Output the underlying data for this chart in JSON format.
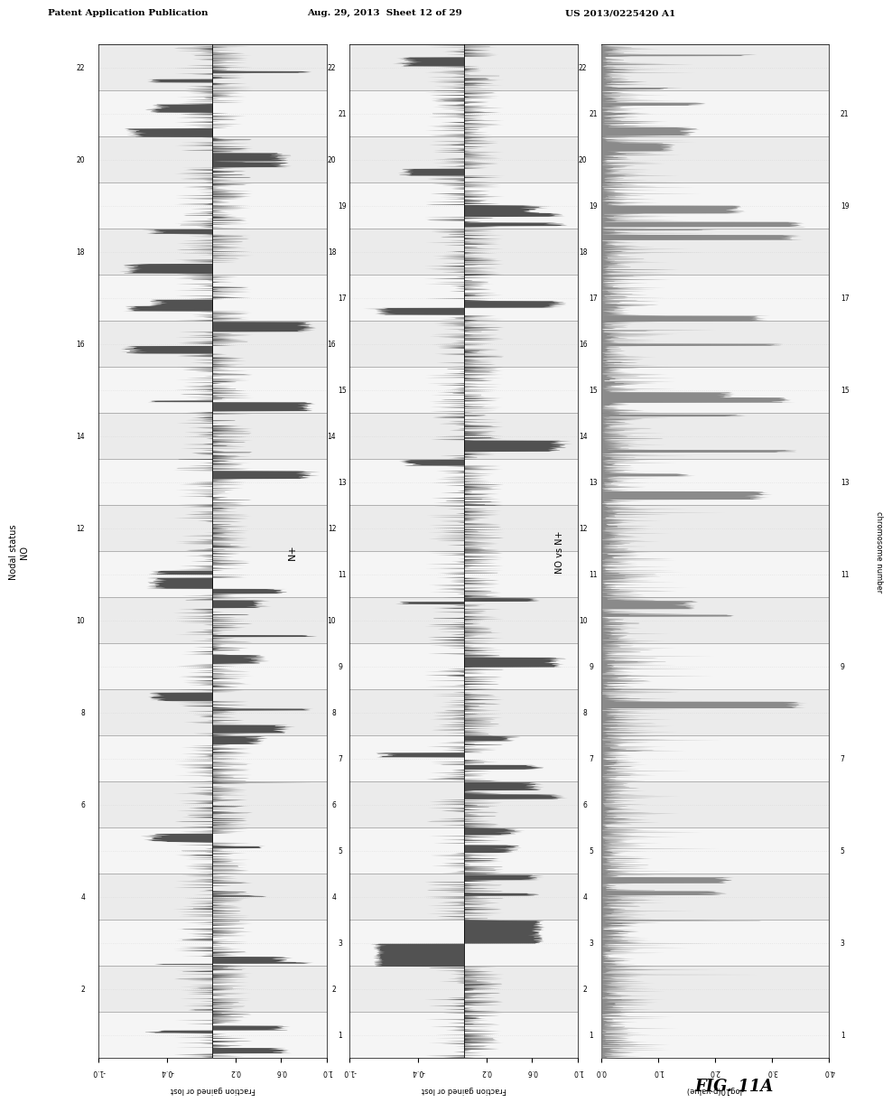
{
  "header_left": "Patent Application Publication",
  "header_mid": "Aug. 29, 2013  Sheet 12 of 29",
  "header_right": "US 2013/0225420 A1",
  "panel1_title": "Nodal status\nNO",
  "panel2_title": "N+",
  "panel3_title": "NO vs N+",
  "ylabel1": "Fraction gained or lost",
  "ylabel2": "Fraction gained or lost",
  "ylabel3": "-log10(p-value)",
  "chr_label": "chromosome number",
  "xlim1": [
    -1.0,
    1.0
  ],
  "xlim2": [
    -1.0,
    1.0
  ],
  "xlim3": [
    0.0,
    4.0
  ],
  "xticks1": [
    -1.0,
    -0.4,
    0.2,
    0.6,
    1.0
  ],
  "xticks2": [
    -1.0,
    -0.4,
    0.2,
    0.6,
    1.0
  ],
  "xticks3": [
    0.0,
    1.0,
    2.0,
    3.0,
    4.0
  ],
  "background_color": "#ffffff",
  "fig_label": "FIG. 11A",
  "seed": 42,
  "n_chrs": 22,
  "bar_color_dark": "#404040",
  "bar_color_light": "#808080",
  "grid_color": "#aaaaaa",
  "dot_pattern_color": "#cccccc"
}
